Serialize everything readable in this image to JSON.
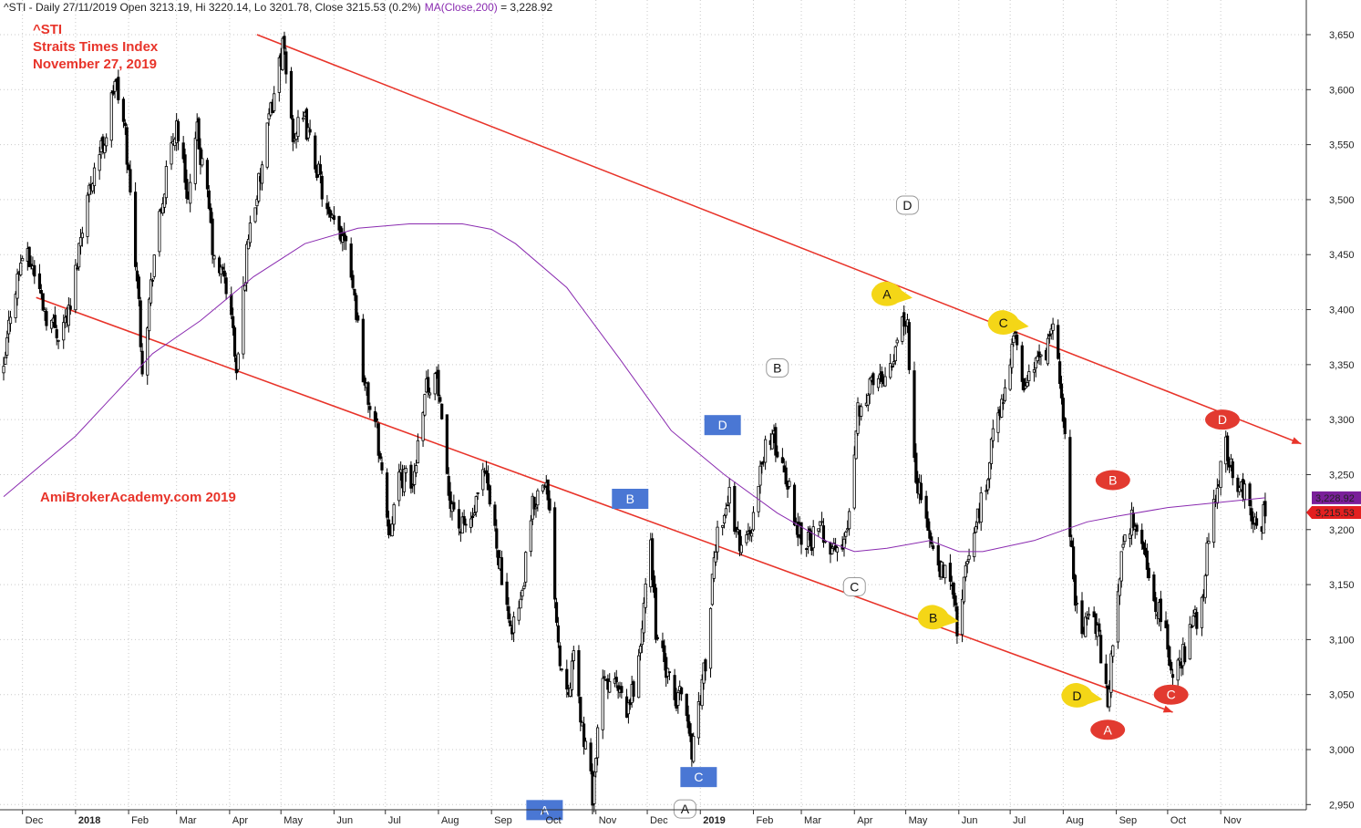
{
  "header": {
    "info": "^STI - Daily 27/11/2019 Open 3213.19, Hi 3220.14, Lo 3201.78, Close 3215.53 (0.2%)",
    "ma_label": "MA(Close,200)",
    "ma_value": " = 3,228.92"
  },
  "title_lines": [
    "^STI",
    "Straits Times Index",
    "November 27, 2019"
  ],
  "watermark": "AmiBrokerAcademy.com   2019",
  "price_tags": {
    "ma": "3,228.92",
    "close": "3,215.53"
  },
  "colors": {
    "candles": "#000000",
    "ma": "#8a2bb0",
    "channel": "#e8342a",
    "title": "#e8342a",
    "ma_tag": "#7a1f9a",
    "close_tag": "#e32020"
  },
  "chart_data": {
    "type": "candlestick",
    "ylim": [
      2940,
      3665
    ],
    "y_ticks": [
      2950,
      3000,
      3050,
      3100,
      3150,
      3200,
      3250,
      3300,
      3350,
      3400,
      3450,
      3500,
      3550,
      3600,
      3650
    ],
    "y_tick_labels": [
      "2,950",
      "3,000",
      "3,050",
      "3,100",
      "3,150",
      "3,200",
      "3,250",
      "3,300",
      "3,350",
      "3,400",
      "3,450",
      "3,500",
      "3,550",
      "3,600",
      "3,650"
    ],
    "x_ticks": [
      {
        "date": "2017-12-01",
        "label": "Dec"
      },
      {
        "date": "2018-01-01",
        "label": "2018",
        "bold": true
      },
      {
        "date": "2018-02-01",
        "label": "Feb"
      },
      {
        "date": "2018-03-01",
        "label": "Mar"
      },
      {
        "date": "2018-04-01",
        "label": "Apr"
      },
      {
        "date": "2018-05-01",
        "label": "May"
      },
      {
        "date": "2018-06-01",
        "label": "Jun"
      },
      {
        "date": "2018-07-01",
        "label": "Jul"
      },
      {
        "date": "2018-08-01",
        "label": "Aug"
      },
      {
        "date": "2018-09-01",
        "label": "Sep"
      },
      {
        "date": "2018-10-01",
        "label": "Oct"
      },
      {
        "date": "2018-11-01",
        "label": "Nov"
      },
      {
        "date": "2018-12-01",
        "label": "Dec"
      },
      {
        "date": "2019-01-01",
        "label": "2019",
        "bold": true
      },
      {
        "date": "2019-02-01",
        "label": "Feb"
      },
      {
        "date": "2019-03-01",
        "label": "Mar"
      },
      {
        "date": "2019-04-01",
        "label": "Apr"
      },
      {
        "date": "2019-05-01",
        "label": "May"
      },
      {
        "date": "2019-06-01",
        "label": "Jun"
      },
      {
        "date": "2019-07-01",
        "label": "Jul"
      },
      {
        "date": "2019-08-01",
        "label": "Aug"
      },
      {
        "date": "2019-09-01",
        "label": "Sep"
      },
      {
        "date": "2019-10-01",
        "label": "Oct"
      },
      {
        "date": "2019-11-01",
        "label": "Nov"
      }
    ],
    "price_path": [
      [
        "2017-11-20",
        3340
      ],
      [
        "2017-11-24",
        3400
      ],
      [
        "2017-12-01",
        3450
      ],
      [
        "2017-12-07",
        3440
      ],
      [
        "2017-12-15",
        3395
      ],
      [
        "2017-12-22",
        3380
      ],
      [
        "2017-12-29",
        3400
      ],
      [
        "2018-01-05",
        3480
      ],
      [
        "2018-01-12",
        3530
      ],
      [
        "2018-01-19",
        3560
      ],
      [
        "2018-01-24",
        3610
      ],
      [
        "2018-01-30",
        3560
      ],
      [
        "2018-02-06",
        3430
      ],
      [
        "2018-02-09",
        3350
      ],
      [
        "2018-02-16",
        3450
      ],
      [
        "2018-02-23",
        3520
      ],
      [
        "2018-03-01",
        3570
      ],
      [
        "2018-03-08",
        3500
      ],
      [
        "2018-03-13",
        3560
      ],
      [
        "2018-03-20",
        3490
      ],
      [
        "2018-03-23",
        3440
      ],
      [
        "2018-03-29",
        3430
      ],
      [
        "2018-04-03",
        3380
      ],
      [
        "2018-04-05",
        3340
      ],
      [
        "2018-04-12",
        3470
      ],
      [
        "2018-04-19",
        3520
      ],
      [
        "2018-04-25",
        3580
      ],
      [
        "2018-05-02",
        3640
      ],
      [
        "2018-05-08",
        3560
      ],
      [
        "2018-05-15",
        3570
      ],
      [
        "2018-05-22",
        3530
      ],
      [
        "2018-05-29",
        3480
      ],
      [
        "2018-06-05",
        3470
      ],
      [
        "2018-06-08",
        3470
      ],
      [
        "2018-06-14",
        3400
      ],
      [
        "2018-06-19",
        3330
      ],
      [
        "2018-06-26",
        3290
      ],
      [
        "2018-07-03",
        3200
      ],
      [
        "2018-07-10",
        3250
      ],
      [
        "2018-07-17",
        3240
      ],
      [
        "2018-07-24",
        3330
      ],
      [
        "2018-07-31",
        3340
      ],
      [
        "2018-08-06",
        3240
      ],
      [
        "2018-08-14",
        3200
      ],
      [
        "2018-08-21",
        3210
      ],
      [
        "2018-08-28",
        3250
      ],
      [
        "2018-09-04",
        3190
      ],
      [
        "2018-09-11",
        3110
      ],
      [
        "2018-09-18",
        3130
      ],
      [
        "2018-09-25",
        3220
      ],
      [
        "2018-10-02",
        3250
      ],
      [
        "2018-10-05",
        3210
      ],
      [
        "2018-10-11",
        3080
      ],
      [
        "2018-10-16",
        3060
      ],
      [
        "2018-10-19",
        3080
      ],
      [
        "2018-10-24",
        3020
      ],
      [
        "2018-10-30",
        2960
      ],
      [
        "2018-11-05",
        3060
      ],
      [
        "2018-11-12",
        3060
      ],
      [
        "2018-11-19",
        3030
      ],
      [
        "2018-11-26",
        3080
      ],
      [
        "2018-12-03",
        3190
      ],
      [
        "2018-12-06",
        3110
      ],
      [
        "2018-12-12",
        3070
      ],
      [
        "2018-12-18",
        3040
      ],
      [
        "2018-12-21",
        3060
      ],
      [
        "2018-12-27",
        3000
      ],
      [
        "2019-01-04",
        3080
      ],
      [
        "2019-01-11",
        3200
      ],
      [
        "2019-01-18",
        3230
      ],
      [
        "2019-01-25",
        3180
      ],
      [
        "2019-02-01",
        3210
      ],
      [
        "2019-02-08",
        3280
      ],
      [
        "2019-02-13",
        3280
      ],
      [
        "2019-02-20",
        3250
      ],
      [
        "2019-02-27",
        3200
      ],
      [
        "2019-03-06",
        3190
      ],
      [
        "2019-03-13",
        3200
      ],
      [
        "2019-03-20",
        3180
      ],
      [
        "2019-03-27",
        3190
      ],
      [
        "2019-04-03",
        3310
      ],
      [
        "2019-04-10",
        3330
      ],
      [
        "2019-04-17",
        3340
      ],
      [
        "2019-04-24",
        3360
      ],
      [
        "2019-04-29",
        3400
      ],
      [
        "2019-05-02",
        3380
      ],
      [
        "2019-05-07",
        3250
      ],
      [
        "2019-05-14",
        3200
      ],
      [
        "2019-05-20",
        3160
      ],
      [
        "2019-05-27",
        3160
      ],
      [
        "2019-05-31",
        3110
      ],
      [
        "2019-06-04",
        3150
      ],
      [
        "2019-06-10",
        3200
      ],
      [
        "2019-06-17",
        3240
      ],
      [
        "2019-06-20",
        3280
      ],
      [
        "2019-06-26",
        3310
      ],
      [
        "2019-07-03",
        3380
      ],
      [
        "2019-07-08",
        3330
      ],
      [
        "2019-07-15",
        3350
      ],
      [
        "2019-07-22",
        3360
      ],
      [
        "2019-07-26",
        3380
      ],
      [
        "2019-07-31",
        3330
      ],
      [
        "2019-08-05",
        3200
      ],
      [
        "2019-08-07",
        3150
      ],
      [
        "2019-08-12",
        3110
      ],
      [
        "2019-08-16",
        3130
      ],
      [
        "2019-08-22",
        3100
      ],
      [
        "2019-08-27",
        3040
      ],
      [
        "2019-08-30",
        3100
      ],
      [
        "2019-09-06",
        3200
      ],
      [
        "2019-09-11",
        3210
      ],
      [
        "2019-09-17",
        3180
      ],
      [
        "2019-09-23",
        3140
      ],
      [
        "2019-09-30",
        3100
      ],
      [
        "2019-10-04",
        3070
      ],
      [
        "2019-10-09",
        3080
      ],
      [
        "2019-10-15",
        3110
      ],
      [
        "2019-10-21",
        3130
      ],
      [
        "2019-10-25",
        3200
      ],
      [
        "2019-10-31",
        3250
      ],
      [
        "2019-11-04",
        3280
      ],
      [
        "2019-11-08",
        3250
      ],
      [
        "2019-11-13",
        3240
      ],
      [
        "2019-11-18",
        3220
      ],
      [
        "2019-11-22",
        3200
      ],
      [
        "2019-11-27",
        3215.53
      ]
    ],
    "ma_series": [
      [
        "2017-11-20",
        3230
      ],
      [
        "2018-01-01",
        3285
      ],
      [
        "2018-02-15",
        3360
      ],
      [
        "2018-03-15",
        3390
      ],
      [
        "2018-04-15",
        3430
      ],
      [
        "2018-05-15",
        3460
      ],
      [
        "2018-06-15",
        3474
      ],
      [
        "2018-07-15",
        3478
      ],
      [
        "2018-08-15",
        3478
      ],
      [
        "2018-09-01",
        3473
      ],
      [
        "2018-09-15",
        3460
      ],
      [
        "2018-10-15",
        3420
      ],
      [
        "2018-11-15",
        3355
      ],
      [
        "2018-12-15",
        3290
      ],
      [
        "2019-01-15",
        3250
      ],
      [
        "2019-02-15",
        3215
      ],
      [
        "2019-03-15",
        3190
      ],
      [
        "2019-04-01",
        3180
      ],
      [
        "2019-04-20",
        3183
      ],
      [
        "2019-05-15",
        3190
      ],
      [
        "2019-06-01",
        3180
      ],
      [
        "2019-06-15",
        3180
      ],
      [
        "2019-07-15",
        3190
      ],
      [
        "2019-08-15",
        3207
      ],
      [
        "2019-09-01",
        3212
      ],
      [
        "2019-10-01",
        3220
      ],
      [
        "2019-11-27",
        3228.92
      ]
    ],
    "channel_lines": [
      {
        "from": [
          "2018-04-17",
          3650
        ],
        "to": [
          "2019-12-18",
          3278
        ]
      },
      {
        "from": [
          "2017-12-09",
          3411
        ],
        "to": [
          "2019-10-04",
          3034
        ]
      }
    ],
    "markers": [
      {
        "label": "A",
        "style": "blue-square",
        "date": "2018-10-02",
        "price": 2945
      },
      {
        "label": "B",
        "style": "blue-square",
        "date": "2018-11-21",
        "price": 3228
      },
      {
        "label": "C",
        "style": "blue-square",
        "date": "2018-12-31",
        "price": 2975
      },
      {
        "label": "D",
        "style": "blue-square",
        "date": "2019-01-14",
        "price": 3295
      },
      {
        "label": "A",
        "style": "white-rounded",
        "date": "2018-12-23",
        "price": 2946
      },
      {
        "label": "B",
        "style": "white-rounded",
        "date": "2019-02-15",
        "price": 3347
      },
      {
        "label": "C",
        "style": "white-rounded",
        "date": "2019-04-01",
        "price": 3148
      },
      {
        "label": "D",
        "style": "white-rounded",
        "date": "2019-05-02",
        "price": 3495
      },
      {
        "label": "A",
        "style": "yellow-drop",
        "date": "2019-04-20",
        "price": 3414
      },
      {
        "label": "B",
        "style": "yellow-drop",
        "date": "2019-05-17",
        "price": 3120
      },
      {
        "label": "C",
        "style": "yellow-drop",
        "date": "2019-06-27",
        "price": 3388
      },
      {
        "label": "D",
        "style": "yellow-drop",
        "date": "2019-08-09",
        "price": 3049
      },
      {
        "label": "A",
        "style": "red-round",
        "date": "2019-08-27",
        "price": 3018
      },
      {
        "label": "B",
        "style": "red-round",
        "date": "2019-08-30",
        "price": 3245
      },
      {
        "label": "C",
        "style": "red-round",
        "date": "2019-10-03",
        "price": 3050
      },
      {
        "label": "D",
        "style": "red-round",
        "date": "2019-11-02",
        "price": 3300
      }
    ]
  }
}
